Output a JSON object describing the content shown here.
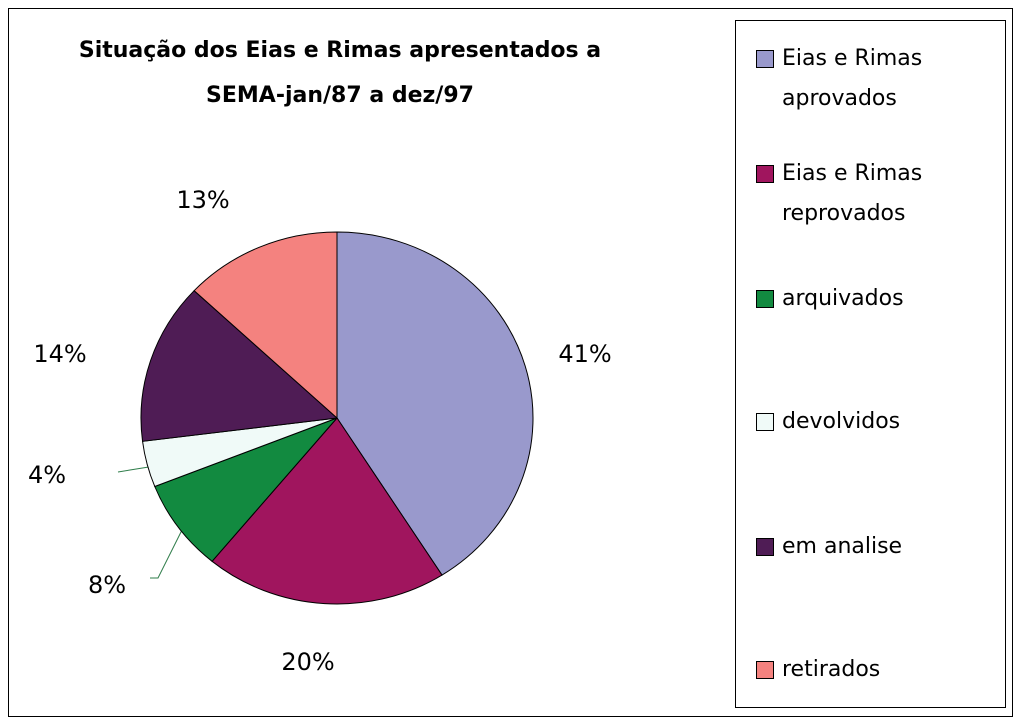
{
  "chart_data": {
    "type": "pie",
    "title": "Situação dos Eias e Rimas apresentados a SEMA-jan/87 a dez/97",
    "categories": [
      "Eias e Rimas aprovados",
      "Eias e Rimas reprovados",
      "arquivados",
      "devolvidos",
      "em analise",
      "retirados"
    ],
    "values": [
      41,
      20,
      8,
      4,
      14,
      13
    ],
    "value_labels": [
      "41%",
      "20%",
      "8%",
      "4%",
      "14%",
      "13%"
    ],
    "colors": [
      "#9999cc",
      "#a0155e",
      "#128a40",
      "#f0faf8",
      "#4f1c55",
      "#f4827f"
    ],
    "legend": "right"
  }
}
